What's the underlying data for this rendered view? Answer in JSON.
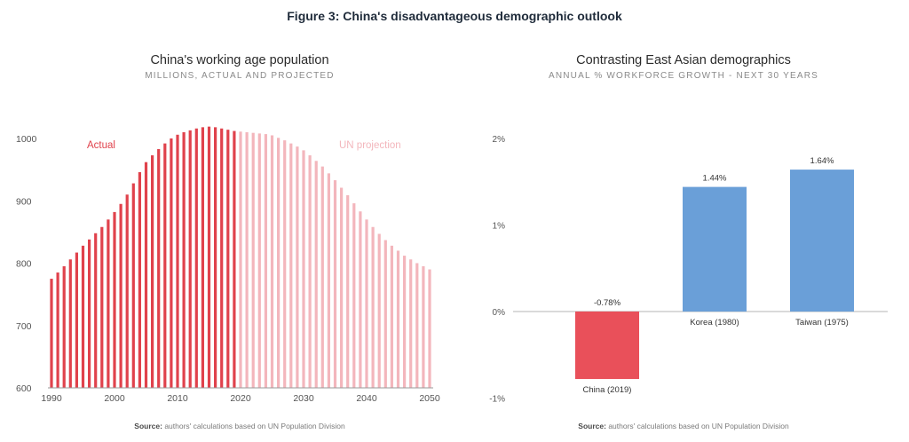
{
  "figure_title": "Figure 3: China's disadvantageous demographic outlook",
  "left": {
    "source_label": "Source:",
    "source_text": "authors' calculations based on UN Population Division"
  },
  "right": {
    "source_label": "Source:",
    "source_text": "authors' calculations based on UN Population Division"
  },
  "chart_data": [
    {
      "type": "bar",
      "title": "China's working age population",
      "subtitle": "MILLIONS, ACTUAL AND PROJECTED",
      "xlabel": "",
      "ylabel": "",
      "ylim": [
        600,
        1040
      ],
      "xlim": [
        1990,
        2050
      ],
      "yticks": [
        600,
        700,
        800,
        900,
        1000
      ],
      "xticks": [
        1990,
        2000,
        2010,
        2020,
        2030,
        2040,
        2050
      ],
      "annotations": [
        "Actual",
        "UN projection"
      ],
      "colors": {
        "actual": "#e0424c",
        "projection": "#f3b6bc"
      },
      "series": [
        {
          "name": "Actual",
          "x": [
            1990,
            1991,
            1992,
            1993,
            1994,
            1995,
            1996,
            1997,
            1998,
            1999,
            2000,
            2001,
            2002,
            2003,
            2004,
            2005,
            2006,
            2007,
            2008,
            2009,
            2010,
            2011,
            2012,
            2013,
            2014,
            2015,
            2016,
            2017,
            2018,
            2019
          ],
          "values": [
            775,
            785,
            795,
            806,
            817,
            828,
            838,
            848,
            858,
            870,
            882,
            895,
            910,
            928,
            946,
            962,
            973,
            983,
            992,
            1000,
            1006,
            1010,
            1013,
            1016,
            1018,
            1019,
            1018,
            1016,
            1014,
            1012
          ]
        },
        {
          "name": "UN projection",
          "x": [
            2020,
            2021,
            2022,
            2023,
            2024,
            2025,
            2026,
            2027,
            2028,
            2029,
            2030,
            2031,
            2032,
            2033,
            2034,
            2035,
            2036,
            2037,
            2038,
            2039,
            2040,
            2041,
            2042,
            2043,
            2044,
            2045,
            2046,
            2047,
            2048,
            2049,
            2050
          ],
          "values": [
            1011,
            1010,
            1009,
            1008,
            1007,
            1005,
            1001,
            997,
            992,
            987,
            981,
            973,
            964,
            955,
            944,
            933,
            921,
            909,
            896,
            883,
            870,
            858,
            847,
            837,
            828,
            820,
            812,
            806,
            800,
            795,
            790
          ]
        }
      ]
    },
    {
      "type": "bar",
      "title": "Contrasting East Asian demographics",
      "subtitle": "ANNUAL % WORKFORCE GROWTH - NEXT 30 YEARS",
      "xlabel": "",
      "ylabel": "",
      "ylim": [
        -1,
        2
      ],
      "yticks": [
        "-1%",
        "0%",
        "1%",
        "2%"
      ],
      "categories": [
        "China (2019)",
        "Korea (1980)",
        "Taiwan (1975)"
      ],
      "values": [
        -0.78,
        1.44,
        1.64
      ],
      "data_labels": [
        "-0.78%",
        "1.44%",
        "1.64%"
      ],
      "colors": [
        "#e9505a",
        "#6a9fd8",
        "#6a9fd8"
      ]
    }
  ]
}
